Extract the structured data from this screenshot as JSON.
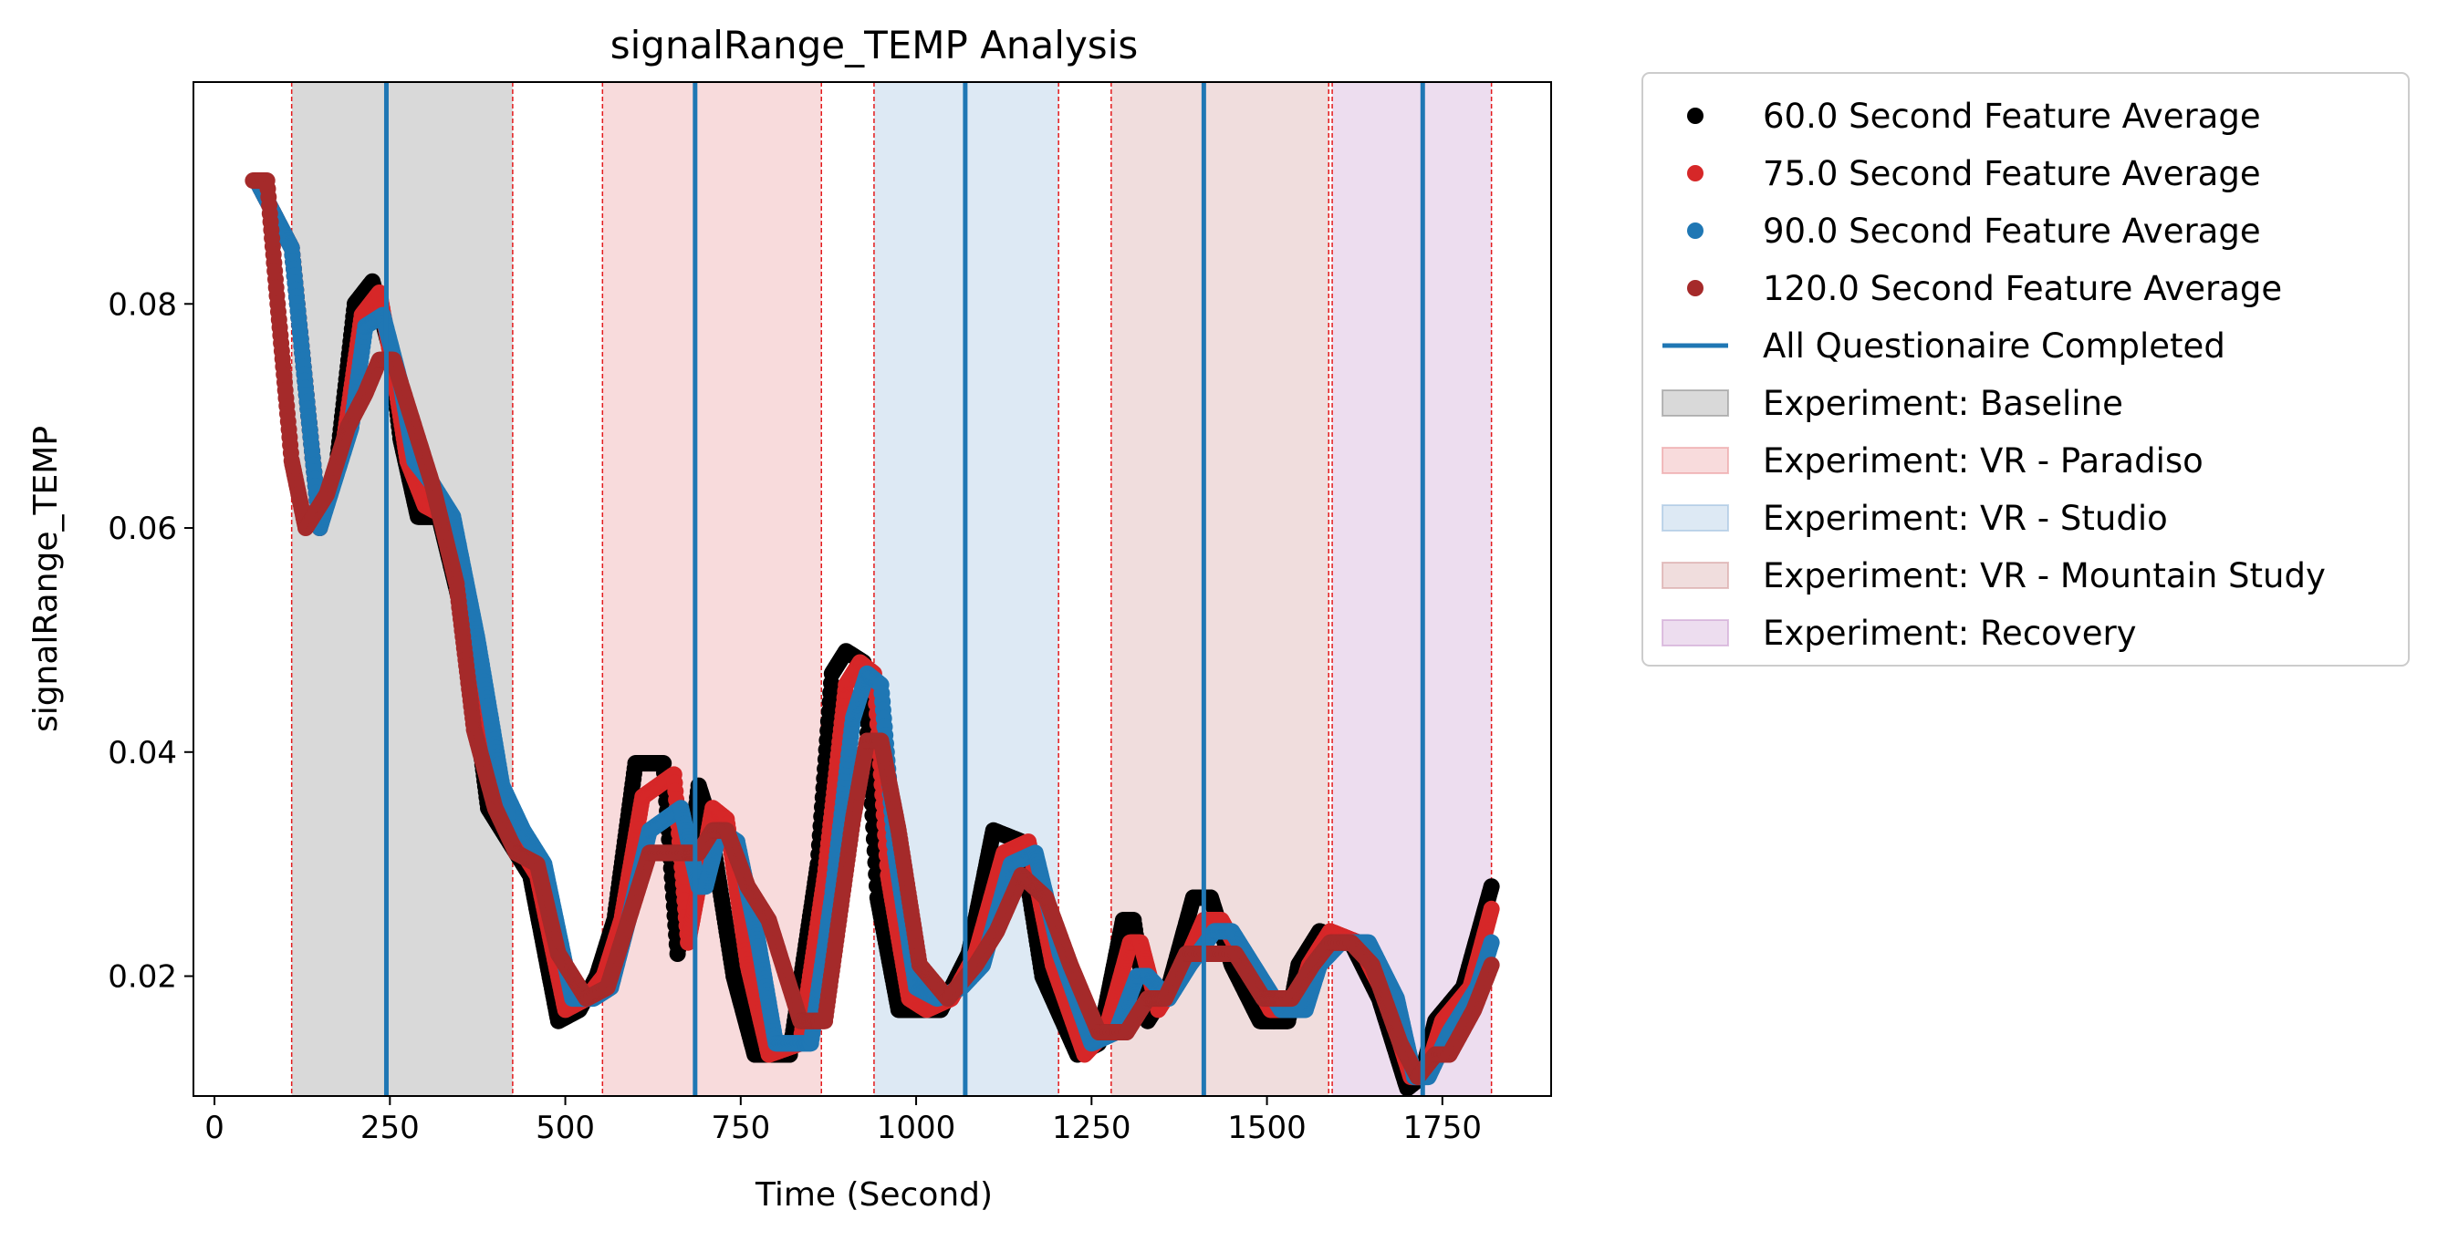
{
  "chart_data": {
    "type": "scatter",
    "title": "signalRange_TEMP Analysis",
    "xlabel": "Time (Second)",
    "ylabel": "signalRange_TEMP",
    "xlim": [
      -30,
      1905
    ],
    "ylim": [
      0.0093,
      0.0998
    ],
    "xticks": [
      0,
      250,
      500,
      750,
      1000,
      1250,
      1500,
      1750
    ],
    "xtick_labels": [
      "0",
      "250",
      "500",
      "750",
      "1000",
      "1250",
      "1500",
      "1750"
    ],
    "yticks": [
      0.02,
      0.04,
      0.06,
      0.08
    ],
    "ytick_labels": [
      "0.02",
      "0.04",
      "0.06",
      "0.08"
    ],
    "grid": false,
    "legend_position": "outside-right-top",
    "series": [
      {
        "name": "60.0 Second Feature Average",
        "color": "#000000",
        "x": [
          60,
          110,
          150,
          175,
          200,
          225,
          250,
          265,
          290,
          320,
          355,
          390,
          420,
          450,
          490,
          520,
          545,
          570,
          600,
          640,
          660,
          675,
          690,
          705,
          740,
          770,
          820,
          860,
          880,
          900,
          925,
          945,
          975,
          1000,
          1035,
          1075,
          1110,
          1150,
          1180,
          1230,
          1260,
          1295,
          1310,
          1330,
          1360,
          1395,
          1420,
          1450,
          1490,
          1530,
          1545,
          1575,
          1620,
          1660,
          1700,
          1720,
          1740,
          1780,
          1820
        ],
        "y": [
          0.091,
          0.085,
          0.06,
          0.066,
          0.08,
          0.082,
          0.076,
          0.068,
          0.061,
          0.061,
          0.052,
          0.035,
          0.032,
          0.029,
          0.016,
          0.017,
          0.02,
          0.025,
          0.039,
          0.039,
          0.022,
          0.029,
          0.037,
          0.034,
          0.02,
          0.013,
          0.013,
          0.03,
          0.047,
          0.049,
          0.048,
          0.027,
          0.017,
          0.017,
          0.017,
          0.022,
          0.033,
          0.032,
          0.02,
          0.013,
          0.014,
          0.025,
          0.025,
          0.016,
          0.019,
          0.027,
          0.027,
          0.021,
          0.016,
          0.016,
          0.021,
          0.024,
          0.023,
          0.018,
          0.01,
          0.011,
          0.016,
          0.019,
          0.028
        ]
      },
      {
        "name": "75.0 Second Feature Average",
        "color": "#d62728",
        "x": [
          60,
          110,
          150,
          185,
          210,
          235,
          255,
          275,
          300,
          330,
          365,
          400,
          430,
          460,
          500,
          530,
          555,
          580,
          610,
          655,
          675,
          690,
          710,
          730,
          760,
          790,
          835,
          870,
          900,
          920,
          940,
          960,
          990,
          1015,
          1050,
          1085,
          1125,
          1160,
          1195,
          1240,
          1270,
          1305,
          1320,
          1345,
          1375,
          1410,
          1435,
          1470,
          1505,
          1540,
          1560,
          1590,
          1630,
          1670,
          1705,
          1725,
          1750,
          1790,
          1820
        ],
        "y": [
          0.091,
          0.085,
          0.06,
          0.068,
          0.079,
          0.081,
          0.074,
          0.066,
          0.062,
          0.061,
          0.051,
          0.036,
          0.032,
          0.029,
          0.017,
          0.018,
          0.02,
          0.025,
          0.036,
          0.038,
          0.023,
          0.028,
          0.035,
          0.034,
          0.021,
          0.013,
          0.014,
          0.029,
          0.046,
          0.048,
          0.047,
          0.029,
          0.018,
          0.017,
          0.018,
          0.022,
          0.031,
          0.032,
          0.021,
          0.013,
          0.015,
          0.023,
          0.023,
          0.017,
          0.02,
          0.025,
          0.025,
          0.021,
          0.017,
          0.017,
          0.021,
          0.024,
          0.023,
          0.018,
          0.011,
          0.011,
          0.016,
          0.019,
          0.026
        ]
      },
      {
        "name": "90.0 Second Feature Average",
        "color": "#1f77b4",
        "x": [
          60,
          110,
          150,
          195,
          215,
          240,
          265,
          285,
          310,
          340,
          375,
          410,
          440,
          470,
          510,
          540,
          565,
          590,
          620,
          665,
          690,
          700,
          720,
          745,
          775,
          800,
          850,
          880,
          910,
          930,
          950,
          970,
          1000,
          1030,
          1065,
          1095,
          1135,
          1170,
          1205,
          1250,
          1285,
          1315,
          1330,
          1360,
          1390,
          1425,
          1450,
          1480,
          1520,
          1555,
          1575,
          1605,
          1645,
          1685,
          1710,
          1730,
          1760,
          1800,
          1820
        ],
        "y": [
          0.091,
          0.085,
          0.06,
          0.069,
          0.078,
          0.079,
          0.073,
          0.066,
          0.064,
          0.061,
          0.05,
          0.037,
          0.033,
          0.03,
          0.018,
          0.018,
          0.019,
          0.025,
          0.033,
          0.035,
          0.028,
          0.028,
          0.033,
          0.032,
          0.023,
          0.014,
          0.014,
          0.027,
          0.043,
          0.047,
          0.046,
          0.031,
          0.019,
          0.018,
          0.019,
          0.021,
          0.03,
          0.031,
          0.022,
          0.014,
          0.015,
          0.02,
          0.02,
          0.018,
          0.021,
          0.024,
          0.024,
          0.021,
          0.017,
          0.017,
          0.021,
          0.023,
          0.023,
          0.018,
          0.011,
          0.011,
          0.015,
          0.019,
          0.023
        ]
      },
      {
        "name": "120.0 Second Feature Average",
        "color": "#a52a2a",
        "x": [
          55,
          75,
          90,
          110,
          130,
          160,
          190,
          215,
          235,
          255,
          285,
          310,
          345,
          370,
          400,
          430,
          460,
          490,
          530,
          560,
          590,
          620,
          655,
          690,
          710,
          730,
          760,
          790,
          835,
          870,
          910,
          930,
          950,
          975,
          1005,
          1045,
          1085,
          1115,
          1150,
          1185,
          1220,
          1260,
          1300,
          1330,
          1355,
          1385,
          1420,
          1455,
          1495,
          1535,
          1565,
          1590,
          1620,
          1650,
          1690,
          1715,
          1740,
          1760,
          1795,
          1820
        ],
        "y": [
          0.091,
          0.091,
          0.08,
          0.066,
          0.06,
          0.063,
          0.069,
          0.072,
          0.075,
          0.075,
          0.069,
          0.064,
          0.055,
          0.042,
          0.035,
          0.031,
          0.03,
          0.022,
          0.018,
          0.019,
          0.025,
          0.031,
          0.031,
          0.031,
          0.033,
          0.033,
          0.028,
          0.025,
          0.016,
          0.016,
          0.034,
          0.041,
          0.041,
          0.033,
          0.021,
          0.018,
          0.021,
          0.024,
          0.029,
          0.027,
          0.021,
          0.015,
          0.015,
          0.018,
          0.018,
          0.022,
          0.022,
          0.022,
          0.018,
          0.018,
          0.021,
          0.023,
          0.023,
          0.021,
          0.014,
          0.011,
          0.013,
          0.013,
          0.017,
          0.021
        ]
      }
    ],
    "vlines": {
      "name": "All Questionaire Completed",
      "color": "#1f77b4",
      "x": [
        245,
        685,
        1070,
        1410,
        1722
      ]
    },
    "spans": [
      {
        "name": "Experiment: Baseline",
        "color": "#808080",
        "start": 110,
        "end": 425
      },
      {
        "name": "Experiment: VR - Paradiso",
        "color": "#e8898c",
        "start": 553,
        "end": 865
      },
      {
        "name": "Experiment: VR - Studio",
        "color": "#8fb6d9",
        "start": 940,
        "end": 1203
      },
      {
        "name": "Experiment: VR - Mountain Study",
        "color": "#cd8f8f",
        "start": 1278,
        "end": 1588
      },
      {
        "name": "Experiment: Recovery",
        "color": "#c490c9",
        "start": 1593,
        "end": 1820
      }
    ],
    "span_edge_color": "#e31a1c",
    "legend": [
      {
        "label": "60.0 Second Feature Average",
        "kind": "marker",
        "color": "#000000"
      },
      {
        "label": "75.0 Second Feature Average",
        "kind": "marker",
        "color": "#d62728"
      },
      {
        "label": "90.0 Second Feature Average",
        "kind": "marker",
        "color": "#1f77b4"
      },
      {
        "label": "120.0 Second Feature Average",
        "kind": "marker",
        "color": "#a52a2a"
      },
      {
        "label": "All Questionaire Completed",
        "kind": "line",
        "color": "#1f77b4"
      },
      {
        "label": "Experiment: Baseline",
        "kind": "patch",
        "color": "#808080"
      },
      {
        "label": "Experiment: VR - Paradiso",
        "kind": "patch",
        "color": "#e8898c"
      },
      {
        "label": "Experiment: VR - Studio",
        "kind": "patch",
        "color": "#8fb6d9"
      },
      {
        "label": "Experiment: VR - Mountain Study",
        "kind": "patch",
        "color": "#cd8f8f"
      },
      {
        "label": "Experiment: Recovery",
        "kind": "patch",
        "color": "#c490c9"
      }
    ]
  }
}
